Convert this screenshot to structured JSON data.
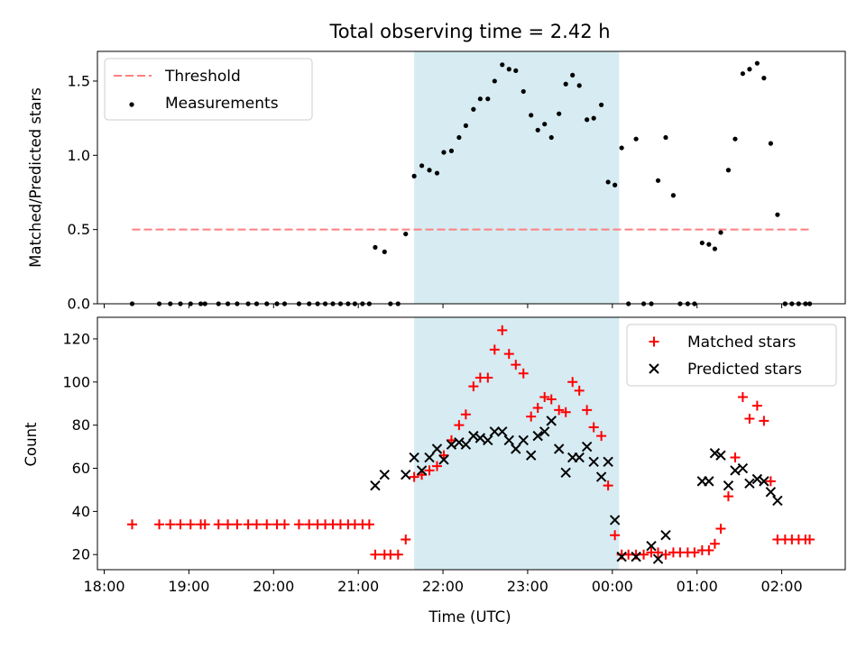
{
  "chart_data": [
    {
      "type": "scatter",
      "title": "Total observing time = 2.42 h",
      "xlabel": "",
      "ylabel": "Matched/Predicted stars",
      "xlim": [
        17.92,
        26.75
      ],
      "ylim": [
        0.0,
        1.7
      ],
      "yticks": [
        0.0,
        0.5,
        1.0,
        1.5
      ],
      "ytick_labels": [
        "0.0",
        "0.5",
        "1.0",
        "1.5"
      ],
      "shaded_span": {
        "x0": 21.66,
        "x1": 24.08,
        "color": "#add8e6"
      },
      "legend": {
        "position": "upper left",
        "entries": [
          "Threshold",
          "Measurements"
        ]
      },
      "threshold": {
        "label": "Threshold",
        "y": 0.5,
        "x0": 18.33,
        "x1": 26.33,
        "color": "#ff8080",
        "style": "dashed"
      },
      "series": [
        {
          "name": "Measurements",
          "color": "#000000",
          "marker": "dot",
          "points": [
            [
              18.33,
              0
            ],
            [
              18.65,
              0
            ],
            [
              18.78,
              0
            ],
            [
              18.9,
              0
            ],
            [
              19.02,
              0
            ],
            [
              19.14,
              0
            ],
            [
              19.19,
              0
            ],
            [
              19.35,
              0
            ],
            [
              19.46,
              0
            ],
            [
              19.57,
              0
            ],
            [
              19.7,
              0
            ],
            [
              19.8,
              0
            ],
            [
              19.92,
              0
            ],
            [
              20.04,
              0
            ],
            [
              20.13,
              0
            ],
            [
              20.3,
              0
            ],
            [
              20.42,
              0
            ],
            [
              20.52,
              0
            ],
            [
              20.61,
              0
            ],
            [
              20.7,
              0
            ],
            [
              20.79,
              0
            ],
            [
              20.88,
              0
            ],
            [
              20.96,
              0
            ],
            [
              21.05,
              0
            ],
            [
              21.13,
              0
            ],
            [
              21.2,
              0.38
            ],
            [
              21.31,
              0.35
            ],
            [
              21.38,
              0
            ],
            [
              21.47,
              0
            ],
            [
              21.56,
              0.47
            ],
            [
              21.66,
              0.86
            ],
            [
              21.75,
              0.93
            ],
            [
              21.84,
              0.9
            ],
            [
              21.93,
              0.88
            ],
            [
              22.01,
              1.02
            ],
            [
              22.1,
              1.03
            ],
            [
              22.19,
              1.12
            ],
            [
              22.27,
              1.2
            ],
            [
              22.36,
              1.31
            ],
            [
              22.44,
              1.38
            ],
            [
              22.53,
              1.38
            ],
            [
              22.61,
              1.5
            ],
            [
              22.7,
              1.61
            ],
            [
              22.78,
              1.58
            ],
            [
              22.86,
              1.57
            ],
            [
              22.95,
              1.43
            ],
            [
              23.04,
              1.27
            ],
            [
              23.12,
              1.17
            ],
            [
              23.2,
              1.21
            ],
            [
              23.28,
              1.12
            ],
            [
              23.37,
              1.28
            ],
            [
              23.45,
              1.48
            ],
            [
              23.53,
              1.54
            ],
            [
              23.61,
              1.47
            ],
            [
              23.7,
              1.24
            ],
            [
              23.78,
              1.25
            ],
            [
              23.87,
              1.34
            ],
            [
              23.95,
              0.82
            ],
            [
              24.03,
              0.8
            ],
            [
              24.11,
              1.05
            ],
            [
              24.19,
              0
            ],
            [
              24.28,
              1.11
            ],
            [
              24.37,
              0
            ],
            [
              24.46,
              0
            ],
            [
              24.54,
              0.83
            ],
            [
              24.63,
              1.12
            ],
            [
              24.72,
              0.73
            ],
            [
              24.8,
              0
            ],
            [
              24.89,
              0
            ],
            [
              24.97,
              0
            ],
            [
              25.06,
              0.41
            ],
            [
              25.14,
              0.4
            ],
            [
              25.21,
              0.37
            ],
            [
              25.28,
              0.48
            ],
            [
              25.37,
              0.9
            ],
            [
              25.45,
              1.11
            ],
            [
              25.54,
              1.55
            ],
            [
              25.62,
              1.58
            ],
            [
              25.71,
              1.62
            ],
            [
              25.79,
              1.52
            ],
            [
              25.87,
              1.08
            ],
            [
              25.95,
              0.6
            ],
            [
              26.04,
              0
            ],
            [
              26.12,
              0
            ],
            [
              26.2,
              0
            ],
            [
              26.28,
              0
            ],
            [
              26.33,
              0
            ]
          ]
        }
      ]
    },
    {
      "type": "scatter",
      "title": "",
      "xlabel": "Time (UTC)",
      "ylabel": "Count",
      "xlim": [
        17.92,
        26.75
      ],
      "ylim": [
        13,
        130
      ],
      "yticks": [
        20,
        40,
        60,
        80,
        100,
        120
      ],
      "ytick_labels": [
        "20",
        "40",
        "60",
        "80",
        "100",
        "120"
      ],
      "xticks": [
        18,
        19,
        20,
        21,
        22,
        23,
        24,
        25,
        26
      ],
      "xtick_labels": [
        "18:00",
        "19:00",
        "20:00",
        "21:00",
        "22:00",
        "23:00",
        "00:00",
        "01:00",
        "02:00"
      ],
      "shaded_span": {
        "x0": 21.66,
        "x1": 24.08,
        "color": "#add8e6"
      },
      "legend": {
        "position": "upper right",
        "entries": [
          "Matched stars",
          "Predicted stars"
        ]
      },
      "series": [
        {
          "name": "Matched stars",
          "color": "#ff0000",
          "marker": "plus",
          "points": [
            [
              18.33,
              34
            ],
            [
              18.65,
              34
            ],
            [
              18.78,
              34
            ],
            [
              18.9,
              34
            ],
            [
              19.02,
              34
            ],
            [
              19.14,
              34
            ],
            [
              19.19,
              34
            ],
            [
              19.35,
              34
            ],
            [
              19.46,
              34
            ],
            [
              19.57,
              34
            ],
            [
              19.7,
              34
            ],
            [
              19.8,
              34
            ],
            [
              19.92,
              34
            ],
            [
              20.04,
              34
            ],
            [
              20.13,
              34
            ],
            [
              20.3,
              34
            ],
            [
              20.42,
              34
            ],
            [
              20.52,
              34
            ],
            [
              20.61,
              34
            ],
            [
              20.7,
              34
            ],
            [
              20.79,
              34
            ],
            [
              20.88,
              34
            ],
            [
              20.96,
              34
            ],
            [
              21.05,
              34
            ],
            [
              21.13,
              34
            ],
            [
              21.2,
              20
            ],
            [
              21.31,
              20
            ],
            [
              21.38,
              20
            ],
            [
              21.47,
              20
            ],
            [
              21.56,
              27
            ],
            [
              21.66,
              56
            ],
            [
              21.75,
              57
            ],
            [
              21.84,
              59
            ],
            [
              21.93,
              61
            ],
            [
              22.01,
              66
            ],
            [
              22.1,
              73
            ],
            [
              22.19,
              80
            ],
            [
              22.27,
              85
            ],
            [
              22.36,
              98
            ],
            [
              22.44,
              102
            ],
            [
              22.53,
              102
            ],
            [
              22.61,
              115
            ],
            [
              22.7,
              124
            ],
            [
              22.78,
              113
            ],
            [
              22.86,
              108
            ],
            [
              22.95,
              104
            ],
            [
              23.04,
              84
            ],
            [
              23.12,
              88
            ],
            [
              23.2,
              93
            ],
            [
              23.28,
              92
            ],
            [
              23.37,
              87
            ],
            [
              23.45,
              86
            ],
            [
              23.53,
              100
            ],
            [
              23.61,
              96
            ],
            [
              23.7,
              87
            ],
            [
              23.78,
              79
            ],
            [
              23.87,
              75
            ],
            [
              23.95,
              52
            ],
            [
              24.03,
              29
            ],
            [
              24.11,
              20
            ],
            [
              24.19,
              20
            ],
            [
              24.28,
              20
            ],
            [
              24.37,
              20
            ],
            [
              24.46,
              21
            ],
            [
              24.54,
              21
            ],
            [
              24.63,
              20
            ],
            [
              24.72,
              21
            ],
            [
              24.8,
              21
            ],
            [
              24.89,
              21
            ],
            [
              24.97,
              21
            ],
            [
              25.06,
              22
            ],
            [
              25.14,
              22
            ],
            [
              25.21,
              25
            ],
            [
              25.28,
              32
            ],
            [
              25.37,
              47
            ],
            [
              25.45,
              65
            ],
            [
              25.54,
              93
            ],
            [
              25.62,
              83
            ],
            [
              25.71,
              89
            ],
            [
              25.79,
              82
            ],
            [
              25.87,
              54
            ],
            [
              25.95,
              27
            ],
            [
              26.04,
              27
            ],
            [
              26.12,
              27
            ],
            [
              26.2,
              27
            ],
            [
              26.28,
              27
            ],
            [
              26.33,
              27
            ]
          ]
        },
        {
          "name": "Predicted stars",
          "color": "#000000",
          "marker": "x",
          "points": [
            [
              21.2,
              52
            ],
            [
              21.31,
              57
            ],
            [
              21.56,
              57
            ],
            [
              21.66,
              65
            ],
            [
              21.75,
              59
            ],
            [
              21.84,
              65
            ],
            [
              21.93,
              69
            ],
            [
              22.01,
              64
            ],
            [
              22.1,
              71
            ],
            [
              22.19,
              72
            ],
            [
              22.27,
              71
            ],
            [
              22.36,
              75
            ],
            [
              22.44,
              74
            ],
            [
              22.53,
              73
            ],
            [
              22.61,
              77
            ],
            [
              22.7,
              77
            ],
            [
              22.78,
              73
            ],
            [
              22.86,
              69
            ],
            [
              22.95,
              73
            ],
            [
              23.04,
              66
            ],
            [
              23.12,
              75
            ],
            [
              23.2,
              77
            ],
            [
              23.28,
              82
            ],
            [
              23.37,
              69
            ],
            [
              23.45,
              58
            ],
            [
              23.53,
              65
            ],
            [
              23.61,
              65
            ],
            [
              23.7,
              70
            ],
            [
              23.78,
              63
            ],
            [
              23.87,
              56
            ],
            [
              23.95,
              63
            ],
            [
              24.03,
              36
            ],
            [
              24.11,
              19
            ],
            [
              24.28,
              19
            ],
            [
              24.46,
              24
            ],
            [
              24.54,
              18
            ],
            [
              24.63,
              29
            ],
            [
              25.06,
              54
            ],
            [
              25.14,
              54
            ],
            [
              25.21,
              67
            ],
            [
              25.28,
              66
            ],
            [
              25.37,
              52
            ],
            [
              25.45,
              59
            ],
            [
              25.54,
              60
            ],
            [
              25.62,
              53
            ],
            [
              25.71,
              55
            ],
            [
              25.79,
              54
            ],
            [
              25.87,
              49
            ],
            [
              25.95,
              45
            ]
          ]
        }
      ]
    }
  ]
}
